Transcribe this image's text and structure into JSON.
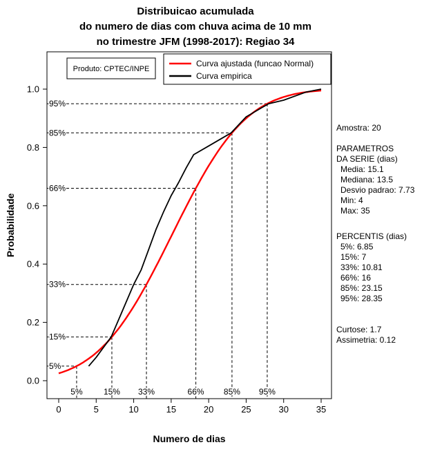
{
  "title": {
    "line1": "Distribuicao acumulada",
    "line2": "do numero de dias com chuva acima de 10 mm",
    "line3": "no trimestre JFM (1998-2017): Regiao 34"
  },
  "legend": {
    "product_label": "Produto: CPTEC/INPE",
    "entries": [
      {
        "label": "Curva ajustada (funcao Normal)",
        "color": "#ff0000"
      },
      {
        "label": "Curva empirica",
        "color": "#000000"
      }
    ]
  },
  "chart_data": {
    "type": "line",
    "title": "Distribuicao acumulada do numero de dias com chuva acima de 10 mm no trimestre JFM (1998-2017): Regiao 34",
    "xlabel": "Numero de dias",
    "ylabel": "Probabilidade",
    "xlim": [
      0,
      35
    ],
    "ylim": [
      0,
      1
    ],
    "x_ticks": [
      0,
      5,
      10,
      15,
      20,
      25,
      30,
      35
    ],
    "y_ticks": [
      0.0,
      0.2,
      0.4,
      0.6,
      0.8,
      1.0
    ],
    "grid": false,
    "legend_position": "top",
    "series": [
      {
        "name": "Curva ajustada (funcao Normal)",
        "color": "#ff0000",
        "type": "normal_cdf",
        "mean": 15.1,
        "sd": 7.73,
        "x_range": [
          0,
          35
        ]
      },
      {
        "name": "Curva empirica",
        "color": "#000000",
        "type": "points",
        "points": [
          [
            4,
            0.05
          ],
          [
            5,
            0.08
          ],
          [
            7,
            0.15
          ],
          [
            8,
            0.21
          ],
          [
            9,
            0.27
          ],
          [
            10,
            0.33
          ],
          [
            11,
            0.38
          ],
          [
            12,
            0.45
          ],
          [
            13,
            0.52
          ],
          [
            14,
            0.58
          ],
          [
            15,
            0.635
          ],
          [
            16,
            0.68
          ],
          [
            17,
            0.73
          ],
          [
            18,
            0.775
          ],
          [
            20,
            0.805
          ],
          [
            23,
            0.85
          ],
          [
            25,
            0.905
          ],
          [
            27,
            0.935
          ],
          [
            28,
            0.95
          ],
          [
            30,
            0.962
          ],
          [
            33,
            0.99
          ],
          [
            34,
            0.995
          ],
          [
            35,
            1.0
          ]
        ]
      }
    ],
    "percentile_guides": [
      {
        "label": "5%",
        "p": 0.05,
        "x": 2.39
      },
      {
        "label": "15%",
        "p": 0.15,
        "x": 7.09
      },
      {
        "label": "33%",
        "p": 0.33,
        "x": 11.7
      },
      {
        "label": "66%",
        "p": 0.66,
        "x": 18.29
      },
      {
        "label": "85%",
        "p": 0.85,
        "x": 23.11
      },
      {
        "label": "95%",
        "p": 0.95,
        "x": 27.81
      }
    ]
  },
  "stats_panel": {
    "amostra": "Amostra: 20",
    "param_header1": "PARAMETROS",
    "param_header2": "DA SERIE (dias)",
    "media": "Media: 15.1",
    "mediana": "Mediana: 13.5",
    "desvio": "Desvio padrao: 7.73",
    "min": "Min: 4",
    "max": "Max: 35",
    "percentis_header": "PERCENTIS (dias)",
    "p5": "5%: 6.85",
    "p15": "15%: 7",
    "p33": "33%: 10.81",
    "p66": "66%: 16",
    "p85": "85%: 23.15",
    "p95": "95%: 28.35",
    "curtose": "Curtose: 1.7",
    "assimetria": "Assimetria: 0.12"
  }
}
